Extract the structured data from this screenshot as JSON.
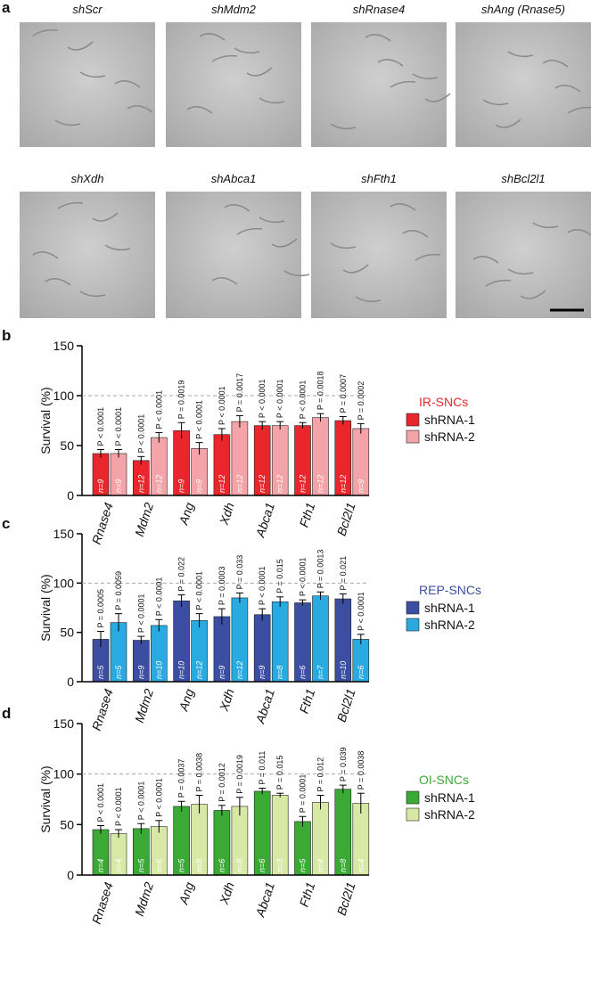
{
  "panel_a": {
    "label": "a",
    "images": [
      "shScr",
      "shMdm2",
      "shRnase4",
      "shAng (Rnase5)",
      "shXdh",
      "shAbca1",
      "shFth1",
      "shBcl2l1"
    ]
  },
  "chart_data": [
    {
      "type": "bar",
      "label": "b",
      "y_label": "Survival (%)",
      "legend_title": "IR-SNCs",
      "legend_title_color": "#e8262b",
      "categories": [
        "Rnase4",
        "Mdm2",
        "Ang",
        "Xdh",
        "Abca1",
        "Fth1",
        "Bcl2l1"
      ],
      "ylim": [
        0,
        150
      ],
      "yticks": [
        0,
        50,
        100,
        150
      ],
      "refline": 100,
      "series": [
        {
          "name": "shRNA-1",
          "color": "#e8262b",
          "values": [
            42,
            35,
            65,
            61,
            70,
            70,
            75
          ],
          "errors": [
            4,
            4,
            8,
            6,
            4,
            3,
            4
          ],
          "n_labels": [
            "n=9",
            "n=12",
            "n=9",
            "n=12",
            "n=12",
            "n=12",
            "n=12"
          ],
          "p_labels": [
            "P < 0.0001",
            "P < 0.0001",
            "P = 0.0019",
            "P < 0.0001",
            "P < 0.0001",
            "P < 0.0001",
            "P = 0.0007"
          ]
        },
        {
          "name": "shRNA-2",
          "color": "#f4a3a8",
          "values": [
            42,
            58,
            47,
            74,
            70,
            78,
            67
          ],
          "errors": [
            4,
            5,
            6,
            6,
            4,
            4,
            5
          ],
          "n_labels": [
            "n=9",
            "n=12",
            "n=9",
            "n=12",
            "n=12",
            "n=12",
            "n=9"
          ],
          "p_labels": [
            "P < 0.0001",
            "P < 0.0001",
            "P < 0.0001",
            "P = 0.0017",
            "P < 0.0001",
            "P = 0.0018",
            "P = 0.0002"
          ]
        }
      ]
    },
    {
      "type": "bar",
      "label": "c",
      "y_label": "Survival (%)",
      "legend_title": "REP-SNCs",
      "legend_title_color": "#3b4ea2",
      "categories": [
        "Rnase4",
        "Mdm2",
        "Ang",
        "Xdh",
        "Abca1",
        "Fth1",
        "Bcl2l1"
      ],
      "ylim": [
        0,
        150
      ],
      "yticks": [
        0,
        50,
        100,
        150
      ],
      "refline": 100,
      "series": [
        {
          "name": "shRNA-1",
          "color": "#3b4ea2",
          "values": [
            43,
            42,
            82,
            66,
            68,
            80,
            84
          ],
          "errors": [
            8,
            4,
            6,
            8,
            6,
            3,
            5
          ],
          "n_labels": [
            "n=5",
            "n=9",
            "n=10",
            "n=9",
            "n=9",
            "n=6",
            "n=10"
          ],
          "p_labels": [
            "P = 0.0005",
            "P < 0.0001",
            "P = 0.022",
            "P = 0.0003",
            "P < 0.0001",
            "P < 0.0001",
            "P = 0.021"
          ]
        },
        {
          "name": "shRNA-2",
          "color": "#29abe2",
          "values": [
            60,
            57,
            62,
            85,
            81,
            87,
            43
          ],
          "errors": [
            9,
            6,
            7,
            5,
            5,
            4,
            5
          ],
          "n_labels": [
            "n=5",
            "n=10",
            "n=12",
            "n=12",
            "n=8",
            "n=7",
            "n=6"
          ],
          "p_labels": [
            "P = 0.0059",
            "P < 0.0001",
            "P < 0.0001",
            "P = 0.033",
            "P = 0.015",
            "P = 0.0013",
            "P < 0.0001"
          ]
        }
      ]
    },
    {
      "type": "bar",
      "label": "d",
      "y_label": "Survival (%)",
      "legend_title": "OI-SNCs",
      "legend_title_color": "#3aaa35",
      "categories": [
        "Rnase4",
        "Mdm2",
        "Ang",
        "Xdh",
        "Abca1",
        "Fth1",
        "Bcl2l1"
      ],
      "ylim": [
        0,
        150
      ],
      "yticks": [
        0,
        50,
        100,
        150
      ],
      "refline": 100,
      "series": [
        {
          "name": "shRNA-1",
          "color": "#3aaa35",
          "values": [
            45,
            46,
            68,
            64,
            83,
            53,
            85
          ],
          "errors": [
            4,
            5,
            5,
            5,
            3,
            5,
            4
          ],
          "n_labels": [
            "n=4",
            "n=5",
            "n=5",
            "n=6",
            "n=6",
            "n=5",
            "n=8"
          ],
          "p_labels": [
            "P < 0.0001",
            "P < 0.0001",
            "P = 0.0037",
            "P = 0.0012",
            "P = 0.011",
            "P = 0.0001",
            "P = 0.039"
          ]
        },
        {
          "name": "shRNA-2",
          "color": "#d7e9a4",
          "values": [
            41,
            48,
            70,
            68,
            79,
            72,
            71
          ],
          "errors": [
            4,
            6,
            9,
            9,
            2,
            7,
            10
          ],
          "n_labels": [
            "n=4",
            "n=6",
            "n=8",
            "n=8",
            "n=3",
            "n=4",
            "n=4"
          ],
          "p_labels": [
            "P < 0.0001",
            "P < 0.0001",
            "P = 0.0038",
            "P = 0.0019",
            "P = 0.015",
            "P = 0.012",
            "P = 0.0038"
          ]
        }
      ]
    }
  ]
}
